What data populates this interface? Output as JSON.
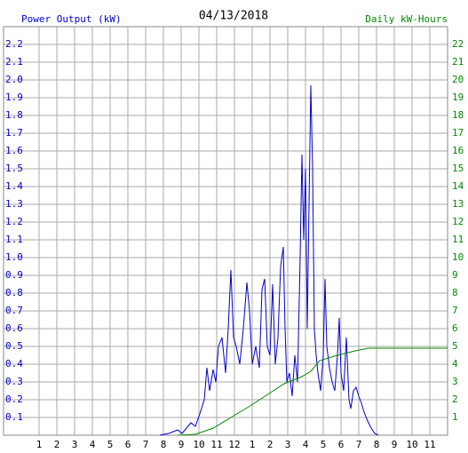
{
  "chart_data": {
    "type": "line",
    "title": "04/13/2018",
    "y_label": "Power Output (kW)",
    "y2_label": "Daily kW-Hours",
    "xlim": [
      -1,
      24
    ],
    "xticks": [
      1,
      2,
      3,
      4,
      5,
      6,
      7,
      8,
      9,
      10,
      11,
      12,
      {
        "value": 13,
        "label": "1"
      },
      {
        "value": 14,
        "label": "2"
      },
      {
        "value": 15,
        "label": "3"
      },
      {
        "value": 16,
        "label": "4"
      },
      {
        "value": 17,
        "label": "5"
      },
      {
        "value": 18,
        "label": "6"
      },
      {
        "value": 19,
        "label": "7"
      },
      {
        "value": 20,
        "label": "8"
      },
      {
        "value": 21,
        "label": "9"
      },
      {
        "value": 22,
        "label": "10"
      },
      {
        "value": 23,
        "label": "11"
      }
    ],
    "ylim": [
      0,
      2.3
    ],
    "yticks": [
      0.1,
      0.2,
      0.3,
      0.4,
      0.5,
      0.6,
      0.7,
      0.8,
      0.9,
      {
        "value": 1,
        "label": "1.0"
      },
      1.1,
      1.2,
      1.3,
      1.4,
      1.5,
      1.6,
      1.7,
      1.8,
      1.9,
      {
        "value": 2,
        "label": "2.0"
      },
      2.1,
      2.2
    ],
    "y2lim": [
      0,
      23
    ],
    "y2ticks": [
      1,
      2,
      3,
      4,
      5,
      6,
      7,
      8,
      9,
      10,
      11,
      12,
      13,
      14,
      15,
      16,
      17,
      18,
      19,
      20,
      21,
      22
    ],
    "grid": true,
    "y_color": "#0000cc",
    "y2_color": "#008800",
    "series": [
      {
        "color": "#0000cc",
        "x": [
          7.8,
          8.3,
          8.8,
          9.05,
          9.3,
          9.55,
          9.8,
          10.05,
          10.3,
          10.45,
          10.6,
          10.8,
          10.95,
          11.1,
          11.3,
          11.5,
          11.65,
          11.8,
          11.95,
          12.1,
          12.3,
          12.5,
          12.7,
          12.85,
          13.0,
          13.2,
          13.4,
          13.55,
          13.7,
          13.85,
          14.0,
          14.15,
          14.3,
          14.45,
          14.6,
          14.75,
          14.85,
          14.95,
          15.1,
          15.25,
          15.4,
          15.55,
          15.7,
          15.8,
          15.9,
          16.0,
          16.1,
          16.2,
          16.3,
          16.4,
          16.5,
          16.6,
          16.7,
          16.85,
          17.0,
          17.1,
          17.2,
          17.35,
          17.5,
          17.65,
          17.8,
          17.9,
          18.0,
          18.15,
          18.3,
          18.45,
          18.55,
          18.7,
          18.85,
          19.0,
          19.15,
          19.3,
          19.5,
          19.7,
          19.9,
          20.1
        ],
        "values": [
          0,
          0.01,
          0.03,
          0.01,
          0.04,
          0.07,
          0.05,
          0.12,
          0.2,
          0.38,
          0.25,
          0.37,
          0.3,
          0.5,
          0.55,
          0.35,
          0.6,
          0.93,
          0.55,
          0.5,
          0.4,
          0.6,
          0.86,
          0.7,
          0.4,
          0.5,
          0.38,
          0.82,
          0.88,
          0.5,
          0.45,
          0.85,
          0.4,
          0.55,
          0.95,
          1.06,
          0.6,
          0.3,
          0.35,
          0.22,
          0.45,
          0.3,
          1.0,
          1.58,
          1.1,
          1.5,
          0.6,
          1.3,
          1.97,
          1.5,
          0.6,
          0.45,
          0.35,
          0.25,
          0.45,
          0.88,
          0.5,
          0.38,
          0.3,
          0.25,
          0.45,
          0.66,
          0.35,
          0.25,
          0.55,
          0.2,
          0.15,
          0.25,
          0.27,
          0.22,
          0.18,
          0.13,
          0.08,
          0.04,
          0.01,
          0
        ]
      },
      {
        "color": "#008800",
        "axis": "y2",
        "x": [
          8.8,
          9.8,
          10.8,
          11.8,
          12.8,
          13.8,
          14.8,
          15.8,
          16.3,
          16.8,
          17.8,
          18.8,
          19.55,
          24
        ],
        "values": [
          0,
          0.05,
          0.4,
          1.0,
          1.6,
          2.25,
          2.9,
          3.3,
          3.6,
          4.2,
          4.5,
          4.75,
          4.9,
          4.9
        ]
      }
    ]
  }
}
